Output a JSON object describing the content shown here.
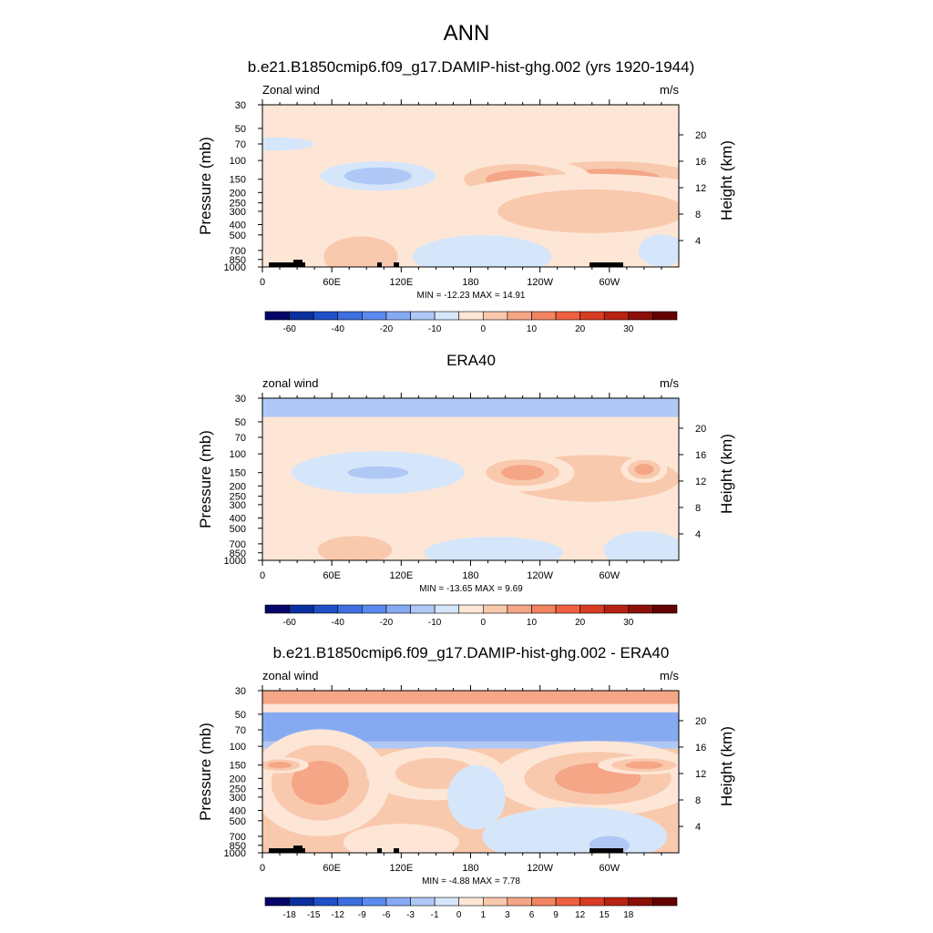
{
  "figure_title": "ANN",
  "chart_data": [
    {
      "type": "heatmap",
      "title": "b.e21.B1850cmip6.f09_g17.DAMIP-hist-ghg.002 (yrs 1920-1944)",
      "variable_label": "Zonal wind",
      "units": "m/s",
      "ylabel": "Pressure (mb)",
      "ylabel_right": "Height (km)",
      "x_ticks": [
        "0",
        "60E",
        "120E",
        "180",
        "120W",
        "60W"
      ],
      "y_ticks": [
        "30",
        "50",
        "70",
        "100",
        "150",
        "200",
        "250",
        "300",
        "400",
        "500",
        "700",
        "850",
        "1000"
      ],
      "height_ticks": [
        "20",
        "16",
        "12",
        "8",
        "4"
      ],
      "stats": "MIN = -12.23  MAX =  14.91",
      "colorbar_labels": [
        "-60",
        "-40",
        "-20",
        "-10",
        "0",
        "10",
        "20",
        "30"
      ],
      "colorbar_colors": [
        "#05056a",
        "#0a30a0",
        "#1f50c8",
        "#3d6fe0",
        "#5a8af0",
        "#86aaf2",
        "#afc8f6",
        "#d6e6fa",
        "#fde6d6",
        "#f9c9ae",
        "#f4a686",
        "#f28462",
        "#ef6040",
        "#d83c22",
        "#b82212",
        "#8a1008",
        "#640000"
      ],
      "features": [
        {
          "lon": 300,
          "p": 150,
          "rx": 110,
          "ry": 95,
          "level": 2.6
        },
        {
          "lon": 220,
          "p": 150,
          "rx": 65,
          "ry": 80,
          "level": 2.4
        },
        {
          "lon": 285,
          "p": 300,
          "rx": 140,
          "ry": 140,
          "level": 1.3
        },
        {
          "lon": 100,
          "p": 140,
          "rx": 50,
          "ry": 55,
          "level": -1.8
        },
        {
          "lon": 10,
          "p": 70,
          "rx": 35,
          "ry": 25,
          "level": -1.0
        },
        {
          "lon": 85,
          "p": 800,
          "rx": 55,
          "ry": 130,
          "level": 1.2
        },
        {
          "lon": 20,
          "p": 200,
          "rx": 30,
          "ry": 60,
          "level": 0.9
        },
        {
          "lon": 190,
          "p": 800,
          "rx": 60,
          "ry": 80,
          "level": -1.0
        },
        {
          "lon": 345,
          "p": 700,
          "rx": 20,
          "ry": 60,
          "level": -0.8
        }
      ],
      "base_level": 0.3
    },
    {
      "type": "heatmap",
      "title": "ERA40",
      "variable_label": "zonal wind",
      "units": "m/s",
      "ylabel": "Pressure (mb)",
      "ylabel_right": "Height (km)",
      "x_ticks": [
        "0",
        "60E",
        "120E",
        "180",
        "120W",
        "60W"
      ],
      "y_ticks": [
        "30",
        "50",
        "70",
        "100",
        "150",
        "200",
        "250",
        "300",
        "400",
        "500",
        "700",
        "850",
        "1000"
      ],
      "height_ticks": [
        "20",
        "16",
        "12",
        "8",
        "4"
      ],
      "stats": "MIN = -13.65  MAX =   9.69",
      "colorbar_labels": [
        "-60",
        "-40",
        "-20",
        "-10",
        "0",
        "10",
        "20",
        "30"
      ],
      "colorbar_colors": [
        "#05056a",
        "#0a30a0",
        "#1f50c8",
        "#3d6fe0",
        "#5a8af0",
        "#86aaf2",
        "#afc8f6",
        "#d6e6fa",
        "#fde6d6",
        "#f9c9ae",
        "#f4a686",
        "#f28462",
        "#ef6040",
        "#d83c22",
        "#b82212",
        "#8a1008",
        "#640000"
      ],
      "features": [
        {
          "lon": 285,
          "p": 170,
          "rx": 130,
          "ry": 150,
          "level": 1.6
        },
        {
          "lon": 225,
          "p": 150,
          "rx": 45,
          "ry": 70,
          "level": 2.3
        },
        {
          "lon": 330,
          "p": 140,
          "rx": 20,
          "ry": 50,
          "level": 2.2
        },
        {
          "lon": 100,
          "p": 150,
          "rx": 75,
          "ry": 80,
          "level": -1.0
        },
        {
          "lon": 100,
          "p": 150,
          "rx": 45,
          "ry": 40,
          "level": -1.8
        },
        {
          "lon": 80,
          "p": 800,
          "rx": 55,
          "ry": 90,
          "level": 1.1
        },
        {
          "lon": 200,
          "p": 850,
          "rx": 60,
          "ry": 60,
          "level": -1.0
        },
        {
          "lon": 330,
          "p": 800,
          "rx": 35,
          "ry": 70,
          "level": -1.0
        }
      ],
      "top_band": {
        "from": 30,
        "to": 45,
        "level": -1.0
      },
      "base_level": 0.3
    },
    {
      "type": "heatmap",
      "title": "b.e21.B1850cmip6.f09_g17.DAMIP-hist-ghg.002 - ERA40",
      "variable_label": "zonal wind",
      "units": "m/s",
      "ylabel": "Pressure (mb)",
      "ylabel_right": "Height (km)",
      "x_ticks": [
        "0",
        "60E",
        "120E",
        "180",
        "120W",
        "60W"
      ],
      "y_ticks": [
        "30",
        "50",
        "70",
        "100",
        "150",
        "200",
        "250",
        "300",
        "400",
        "500",
        "700",
        "850",
        "1000"
      ],
      "height_ticks": [
        "20",
        "16",
        "12",
        "8",
        "4"
      ],
      "stats": "MIN =  -4.88  MAX =   7.78",
      "colorbar_labels": [
        "-18",
        "-15",
        "-12",
        "-9",
        "-6",
        "-3",
        "-1",
        "0",
        "1",
        "3",
        "6",
        "9",
        "12",
        "15",
        "18"
      ],
      "colorbar_colors": [
        "#05056a",
        "#0a30a0",
        "#1f50c8",
        "#3d6fe0",
        "#5a8af0",
        "#86aaf2",
        "#afc8f6",
        "#d6e6fa",
        "#fde6d6",
        "#f9c9ae",
        "#f4a686",
        "#f28462",
        "#ef6040",
        "#d83c22",
        "#b82212",
        "#8a1008",
        "#640000"
      ],
      "features": [
        {
          "lon": 50,
          "p": 220,
          "rx": 60,
          "ry": 200,
          "level": 2.2
        },
        {
          "lon": 15,
          "p": 150,
          "rx": 25,
          "ry": 30,
          "level": 3.0
        },
        {
          "lon": 290,
          "p": 200,
          "rx": 90,
          "ry": 140,
          "level": 2.1
        },
        {
          "lon": 330,
          "p": 150,
          "rx": 40,
          "ry": 35,
          "level": 3.0
        },
        {
          "lon": 150,
          "p": 180,
          "rx": 60,
          "ry": 100,
          "level": 1.2
        },
        {
          "lon": 185,
          "p": 300,
          "rx": 25,
          "ry": 120,
          "level": -0.4
        },
        {
          "lon": 270,
          "p": 700,
          "rx": 80,
          "ry": 110,
          "level": -1.0
        },
        {
          "lon": 300,
          "p": 850,
          "rx": 30,
          "ry": 60,
          "level": -1.8
        },
        {
          "lon": 120,
          "p": 800,
          "rx": 50,
          "ry": 70,
          "level": 1.0
        }
      ],
      "bands": [
        {
          "from": 30,
          "to": 40,
          "level": 2.0
        },
        {
          "from": 40,
          "to": 48,
          "level": 0.9
        },
        {
          "from": 48,
          "to": 90,
          "level": -2.4
        },
        {
          "from": 90,
          "to": 105,
          "level": -1.0
        }
      ],
      "base_level": 1.3
    }
  ]
}
